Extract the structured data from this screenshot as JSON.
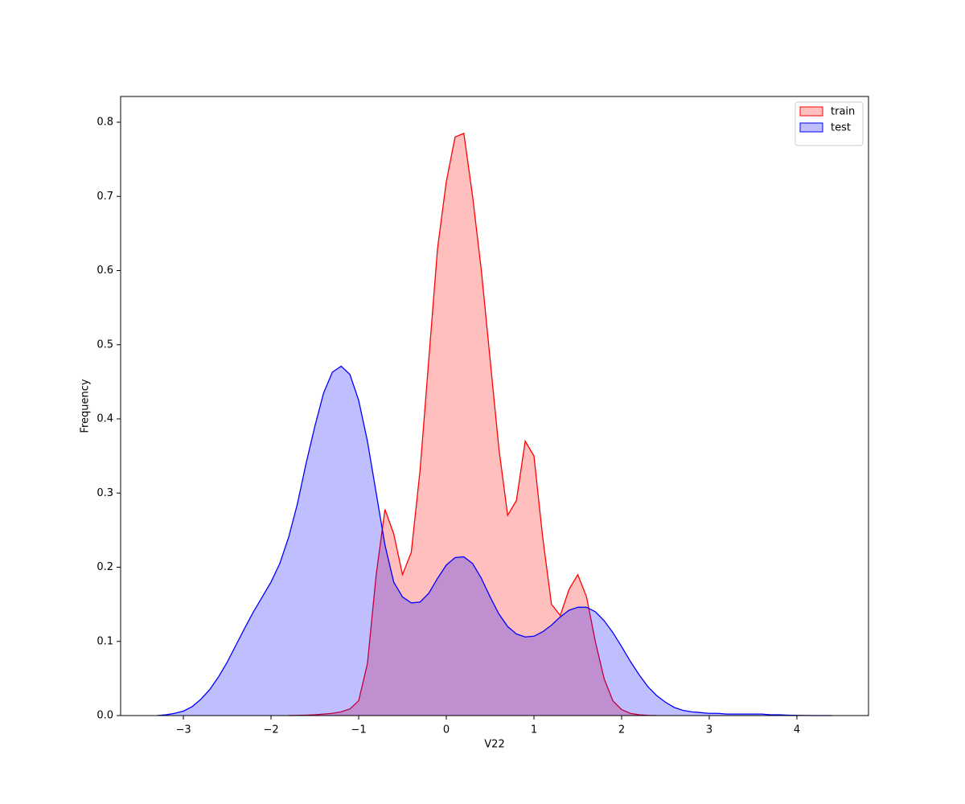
{
  "chart_data": {
    "type": "area",
    "x_label": "V22",
    "y_label": "Frequency",
    "x": [
      -3.3,
      -3.2,
      -3.1,
      -3.0,
      -2.9,
      -2.8,
      -2.7,
      -2.6,
      -2.5,
      -2.4,
      -2.3,
      -2.2,
      -2.1,
      -2.0,
      -1.9,
      -1.8,
      -1.7,
      -1.6,
      -1.5,
      -1.4,
      -1.3,
      -1.2,
      -1.1,
      -1.0,
      -0.9,
      -0.8,
      -0.7,
      -0.6,
      -0.5,
      -0.4,
      -0.3,
      -0.2,
      -0.1,
      0.0,
      0.1,
      0.2,
      0.3,
      0.4,
      0.5,
      0.6,
      0.7,
      0.8,
      0.9,
      1.0,
      1.1,
      1.2,
      1.3,
      1.4,
      1.5,
      1.6,
      1.7,
      1.8,
      1.9,
      2.0,
      2.1,
      2.2,
      2.3,
      2.4,
      2.5,
      2.6,
      2.7,
      2.8,
      2.9,
      3.0,
      3.1,
      3.2,
      3.3,
      3.4,
      3.5,
      3.6,
      3.7,
      3.8,
      3.9,
      4.0,
      4.1,
      4.2,
      4.3,
      4.4
    ],
    "series": [
      {
        "name": "train",
        "color": "#ff0000",
        "values": [
          null,
          null,
          null,
          null,
          null,
          null,
          null,
          null,
          null,
          null,
          null,
          null,
          null,
          null,
          null,
          0,
          0.0002,
          0.0005,
          0.001,
          0.002,
          0.003,
          0.005,
          0.009,
          0.02,
          0.07,
          0.19,
          0.278,
          0.245,
          0.19,
          0.22,
          0.33,
          0.48,
          0.63,
          0.72,
          0.78,
          0.785,
          0.7,
          0.6,
          0.48,
          0.36,
          0.27,
          0.29,
          0.37,
          0.35,
          0.24,
          0.15,
          0.135,
          0.17,
          0.19,
          0.16,
          0.1,
          0.05,
          0.02,
          0.008,
          0.003,
          0.001,
          0.0003,
          0,
          null,
          null,
          null,
          null,
          null,
          null,
          null,
          null,
          null,
          null,
          null,
          null,
          null,
          null,
          null,
          null,
          null,
          null,
          null,
          null
        ]
      },
      {
        "name": "test",
        "color": "#0000ff",
        "values": [
          0,
          0.001,
          0.003,
          0.006,
          0.012,
          0.022,
          0.035,
          0.052,
          0.072,
          0.095,
          0.118,
          0.14,
          0.16,
          0.18,
          0.205,
          0.24,
          0.285,
          0.34,
          0.39,
          0.435,
          0.463,
          0.471,
          0.46,
          0.425,
          0.37,
          0.3,
          0.23,
          0.18,
          0.16,
          0.152,
          0.153,
          0.165,
          0.185,
          0.203,
          0.213,
          0.214,
          0.205,
          0.185,
          0.16,
          0.137,
          0.12,
          0.11,
          0.106,
          0.107,
          0.113,
          0.122,
          0.133,
          0.142,
          0.146,
          0.146,
          0.14,
          0.128,
          0.112,
          0.093,
          0.073,
          0.055,
          0.039,
          0.027,
          0.018,
          0.011,
          0.007,
          0.005,
          0.004,
          0.003,
          0.003,
          0.002,
          0.002,
          0.002,
          0.002,
          0.002,
          0.001,
          0.001,
          0.0005,
          0.0002,
          0.0001,
          0,
          0,
          0
        ]
      }
    ],
    "xlim": [
      -3.716,
      4.817
    ],
    "ylim": [
      0,
      0.8347
    ],
    "xticks": [
      {
        "value": -3,
        "label": "−3"
      },
      {
        "value": -2,
        "label": "−2"
      },
      {
        "value": -1,
        "label": "−1"
      },
      0,
      1,
      2,
      3,
      4
    ],
    "yticks": [
      {
        "value": 0,
        "label": "0.0"
      },
      0.1,
      0.2,
      0.3,
      0.4,
      0.5,
      0.6,
      0.7,
      0.8
    ],
    "fill_opacity": 0.25,
    "legend": "upper right"
  }
}
